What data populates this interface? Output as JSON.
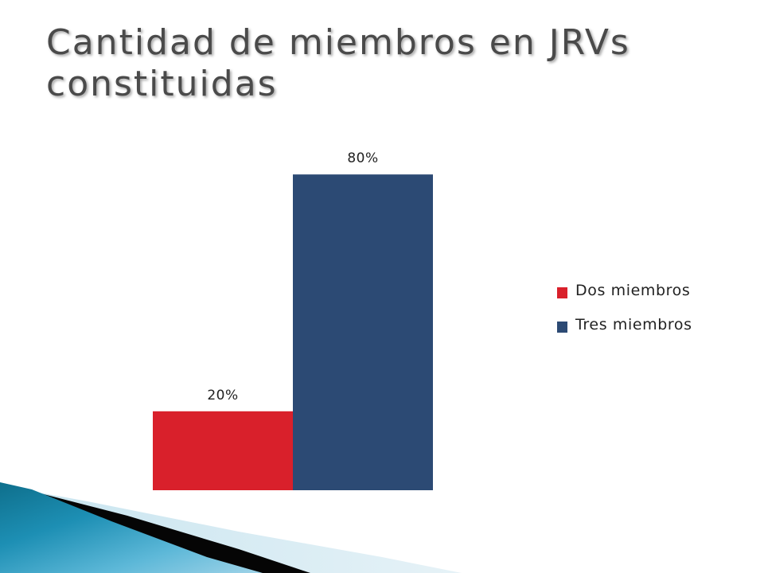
{
  "slide": {
    "title": "Cantidad de miembros en JRVs\nconstituidas"
  },
  "chart_data": {
    "type": "bar",
    "title": "",
    "xlabel": "",
    "ylabel": "",
    "ylim": [
      0,
      100
    ],
    "grid": false,
    "legend_position": "right",
    "data_label_format": "percent",
    "series": [
      {
        "name": "Dos miembros",
        "value": 20,
        "label": "20%",
        "color": "#d9202b"
      },
      {
        "name": "Tres miembros",
        "value": 80,
        "label": "80%",
        "color": "#2c4a74"
      }
    ]
  }
}
